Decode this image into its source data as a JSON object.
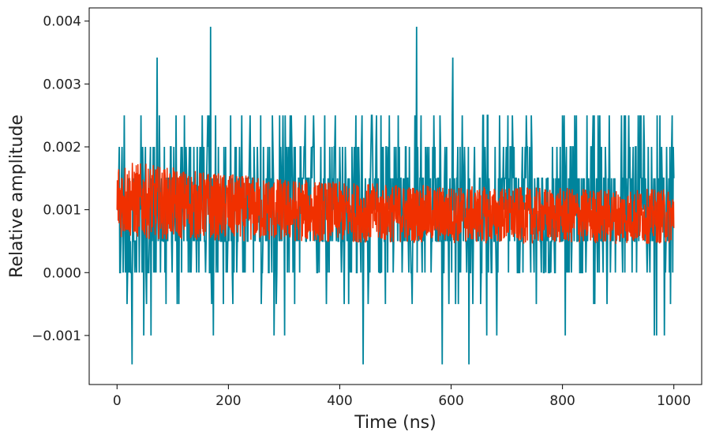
{
  "chart_data": {
    "type": "line",
    "xlabel": "Time (ns)",
    "ylabel": "Relative amplitude",
    "xlim": [
      -50,
      1050
    ],
    "ylim": [
      -0.00178,
      0.00421
    ],
    "x_ticks": [
      0,
      200,
      400,
      600,
      800,
      1000
    ],
    "x_tick_labels": [
      "0",
      "200",
      "400",
      "600",
      "800",
      "1000"
    ],
    "y_ticks": [
      -0.001,
      0.0,
      0.001,
      0.002,
      0.003,
      0.004
    ],
    "y_tick_labels": [
      "−0.001",
      "0.000",
      "0.001",
      "0.002",
      "0.003",
      "0.004"
    ],
    "grid": false,
    "legend": "none",
    "series": [
      {
        "color": "#00849c",
        "description_levels": [
          -0.0015,
          -0.001,
          -0.0005,
          0.0,
          0.0005,
          0.001,
          0.0015,
          0.002,
          0.0025,
          0.0029,
          0.0034,
          0.0039
        ],
        "x_range": [
          0,
          1000
        ],
        "baseline": 0.001,
        "spikes": [
          {
            "x": 27,
            "y": -0.00146
          },
          {
            "x": 72,
            "y": 0.00342
          },
          {
            "x": 168,
            "y": 0.00391
          },
          {
            "x": 442,
            "y": -0.00146
          },
          {
            "x": 538,
            "y": 0.00391
          },
          {
            "x": 584,
            "y": -0.00146
          },
          {
            "x": 603,
            "y": 0.00342
          },
          {
            "x": 632,
            "y": -0.00146
          }
        ]
      },
      {
        "color": "#f03000",
        "x_range": [
          0,
          1000
        ],
        "center_start": 0.00118,
        "center_end": 0.00088,
        "half_width_start": 0.00063,
        "half_width_end": 0.00043
      }
    ]
  }
}
